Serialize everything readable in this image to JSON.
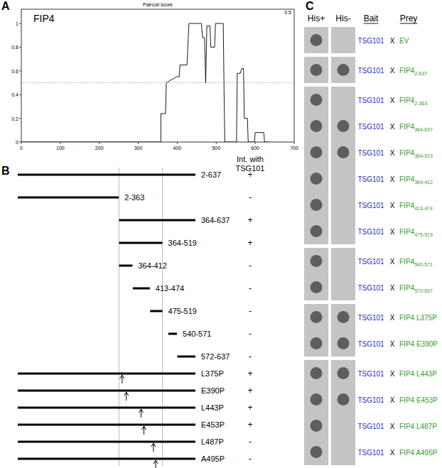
{
  "chart_data": {
    "type": "line",
    "panel_label": "A",
    "title": "Paircoil score",
    "annotations": [
      {
        "text": "FIP4"
      }
    ],
    "threshold": {
      "value": 0.5,
      "label": "0.5"
    },
    "x": [
      0,
      358,
      358,
      370,
      372,
      398,
      405,
      407,
      425,
      430,
      462,
      465,
      470,
      473,
      476,
      484,
      486,
      496,
      498,
      518,
      520,
      522,
      552,
      554,
      562,
      565,
      570,
      572,
      580,
      582,
      598,
      600,
      622,
      624,
      637
    ],
    "values": [
      0,
      0,
      0.24,
      0.24,
      0.5,
      0.55,
      0.55,
      0.65,
      0.65,
      1.0,
      1.0,
      0.88,
      0.88,
      0.5,
      0.98,
      0.98,
      0.8,
      0.8,
      1.0,
      1.0,
      0.45,
      0,
      0,
      0.58,
      0.58,
      0.62,
      0.62,
      0.2,
      0.2,
      0,
      0,
      0.08,
      0.08,
      0,
      0
    ],
    "color": "#000000",
    "line_style": "solid",
    "xlim": [
      0,
      700
    ],
    "ylim": [
      0,
      1.12
    ],
    "xticks": [
      0,
      100,
      200,
      300,
      400,
      500,
      600,
      700
    ],
    "yticks": [
      0,
      0.2,
      0.4,
      0.6,
      0.8,
      1
    ]
  },
  "constructs": {
    "panel_label": "B",
    "header": [
      "Int. with",
      "TSG101"
    ],
    "guides": [
      364,
      519
    ],
    "rows": [
      {
        "label": "2-637",
        "start": 2,
        "end": 637,
        "interaction": "+"
      },
      {
        "label": "2-363",
        "start": 2,
        "end": 363,
        "interaction": "-"
      },
      {
        "label": "364-637",
        "start": 364,
        "end": 637,
        "interaction": "+"
      },
      {
        "label": "364-519",
        "start": 364,
        "end": 519,
        "interaction": "+"
      },
      {
        "label": "364-412",
        "start": 364,
        "end": 412,
        "interaction": "-"
      },
      {
        "label": "413-474",
        "start": 413,
        "end": 474,
        "interaction": "-"
      },
      {
        "label": "475-519",
        "start": 475,
        "end": 519,
        "interaction": "-"
      },
      {
        "label": "540-571",
        "start": 540,
        "end": 571,
        "interaction": "-"
      },
      {
        "label": "572-637",
        "start": 572,
        "end": 637,
        "interaction": "-"
      },
      {
        "label": "L375P",
        "start": 2,
        "end": 637,
        "mutation": 375,
        "interaction": "+"
      },
      {
        "label": "E390P",
        "start": 2,
        "end": 637,
        "mutation": 390,
        "interaction": "+"
      },
      {
        "label": "L443P",
        "start": 2,
        "end": 637,
        "mutation": 443,
        "interaction": "+"
      },
      {
        "label": "E453P",
        "start": 2,
        "end": 637,
        "mutation": 453,
        "interaction": "+"
      },
      {
        "label": "L487P",
        "start": 2,
        "end": 637,
        "mutation": 487,
        "interaction": "-"
      },
      {
        "label": "A495P",
        "start": 2,
        "end": 637,
        "mutation": 495,
        "interaction": "-"
      }
    ]
  },
  "y2h": {
    "panel_label": "C",
    "headers": [
      "His+",
      "His-",
      "Bait",
      "Prey"
    ],
    "separator": "X",
    "groups": [
      {
        "rows": [
          {
            "bait": "TSG101",
            "prey": "EV",
            "his_plus": true,
            "his_minus": false
          }
        ]
      },
      {
        "rows": [
          {
            "bait": "TSG101",
            "prey": "FIP4",
            "prey_sub": "2-637",
            "his_plus": true,
            "his_minus": true
          }
        ]
      },
      {
        "rows": [
          {
            "bait": "TSG101",
            "prey": "FIP4",
            "prey_sub": "2-363",
            "his_plus": true,
            "his_minus": false
          },
          {
            "bait": "TSG101",
            "prey": "FIP4",
            "prey_sub": "364-637",
            "his_plus": true,
            "his_minus": true
          },
          {
            "bait": "TSG101",
            "prey": "FIP4",
            "prey_sub": "364-519",
            "his_plus": true,
            "his_minus": true
          },
          {
            "bait": "TSG101",
            "prey": "FIP4",
            "prey_sub": "364-412",
            "his_plus": true,
            "his_minus": false
          },
          {
            "bait": "TSG101",
            "prey": "FIP4",
            "prey_sub": "413-474",
            "his_plus": true,
            "his_minus": false
          },
          {
            "bait": "TSG101",
            "prey": "FIP4",
            "prey_sub": "475-519",
            "his_plus": true,
            "his_minus": false
          }
        ]
      },
      {
        "rows": [
          {
            "bait": "TSG101",
            "prey": "FIP4",
            "prey_sub": "540-571",
            "his_plus": true,
            "his_minus": false
          },
          {
            "bait": "TSG101",
            "prey": "FIP4",
            "prey_sub": "572-637",
            "his_plus": true,
            "his_minus": false
          }
        ]
      },
      {
        "rows": [
          {
            "bait": "TSG101",
            "prey": "FIP4 L375P",
            "his_plus": true,
            "his_minus": true
          },
          {
            "bait": "TSG101",
            "prey": "FIP4 E390P",
            "his_plus": true,
            "his_minus": true
          }
        ]
      },
      {
        "rows": [
          {
            "bait": "TSG101",
            "prey": "FIP4 L443P",
            "his_plus": true,
            "his_minus": true
          },
          {
            "bait": "TSG101",
            "prey": "FIP4 E453P",
            "his_plus": true,
            "his_minus": true
          },
          {
            "bait": "TSG101",
            "prey": "FIP4 L487P",
            "his_plus": true,
            "his_minus": false
          },
          {
            "bait": "TSG101",
            "prey": "FIP4 A495P",
            "his_plus": true,
            "his_minus": false
          }
        ]
      }
    ]
  }
}
